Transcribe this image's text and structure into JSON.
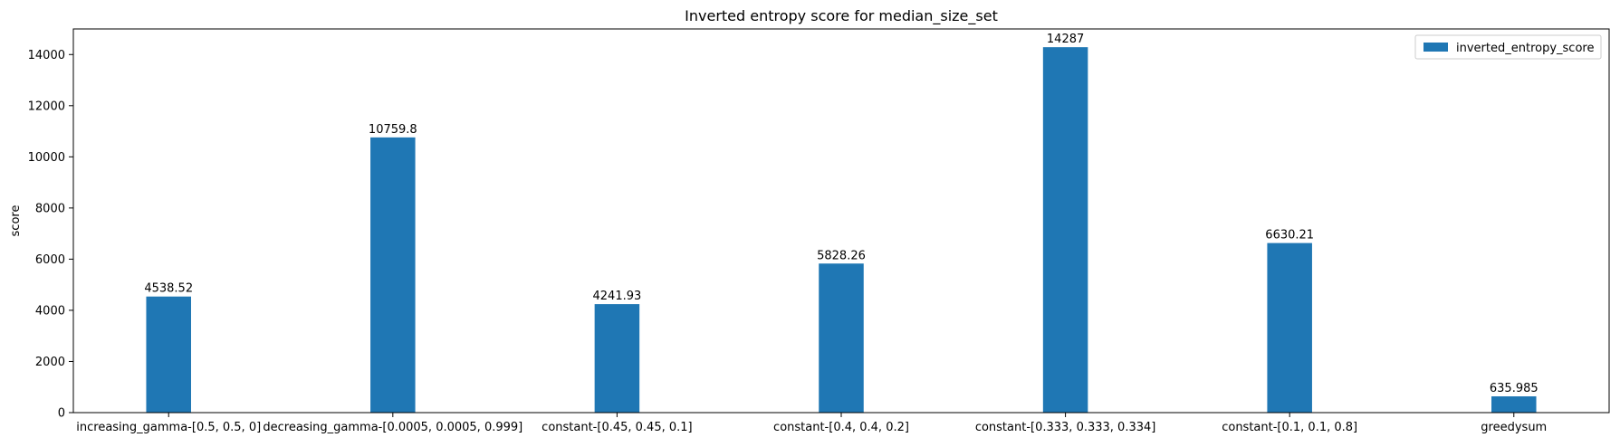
{
  "chart_data": {
    "type": "bar",
    "title": "Inverted entropy score for median_size_set",
    "xlabel": "",
    "ylabel": "score",
    "categories": [
      "increasing_gamma-[0.5, 0.5, 0]",
      "decreasing_gamma-[0.0005, 0.0005, 0.999]",
      "constant-[0.45, 0.45, 0.1]",
      "constant-[0.4, 0.4, 0.2]",
      "constant-[0.333, 0.333, 0.334]",
      "constant-[0.1, 0.1, 0.8]",
      "greedysum"
    ],
    "series": [
      {
        "name": "inverted_entropy_score",
        "color": "#1f77b4",
        "values": [
          4538.52,
          10759.8,
          4241.93,
          5828.26,
          14287,
          6630.21,
          635.985
        ],
        "value_labels": [
          "4538.52",
          "10759.8",
          "4241.93",
          "5828.26",
          "14287",
          "6630.21",
          "635.985"
        ]
      }
    ],
    "ylim": [
      0,
      15000
    ],
    "yticks": [
      0,
      2000,
      4000,
      6000,
      8000,
      10000,
      12000,
      14000
    ],
    "grid": false,
    "legend_position": "upper right"
  }
}
